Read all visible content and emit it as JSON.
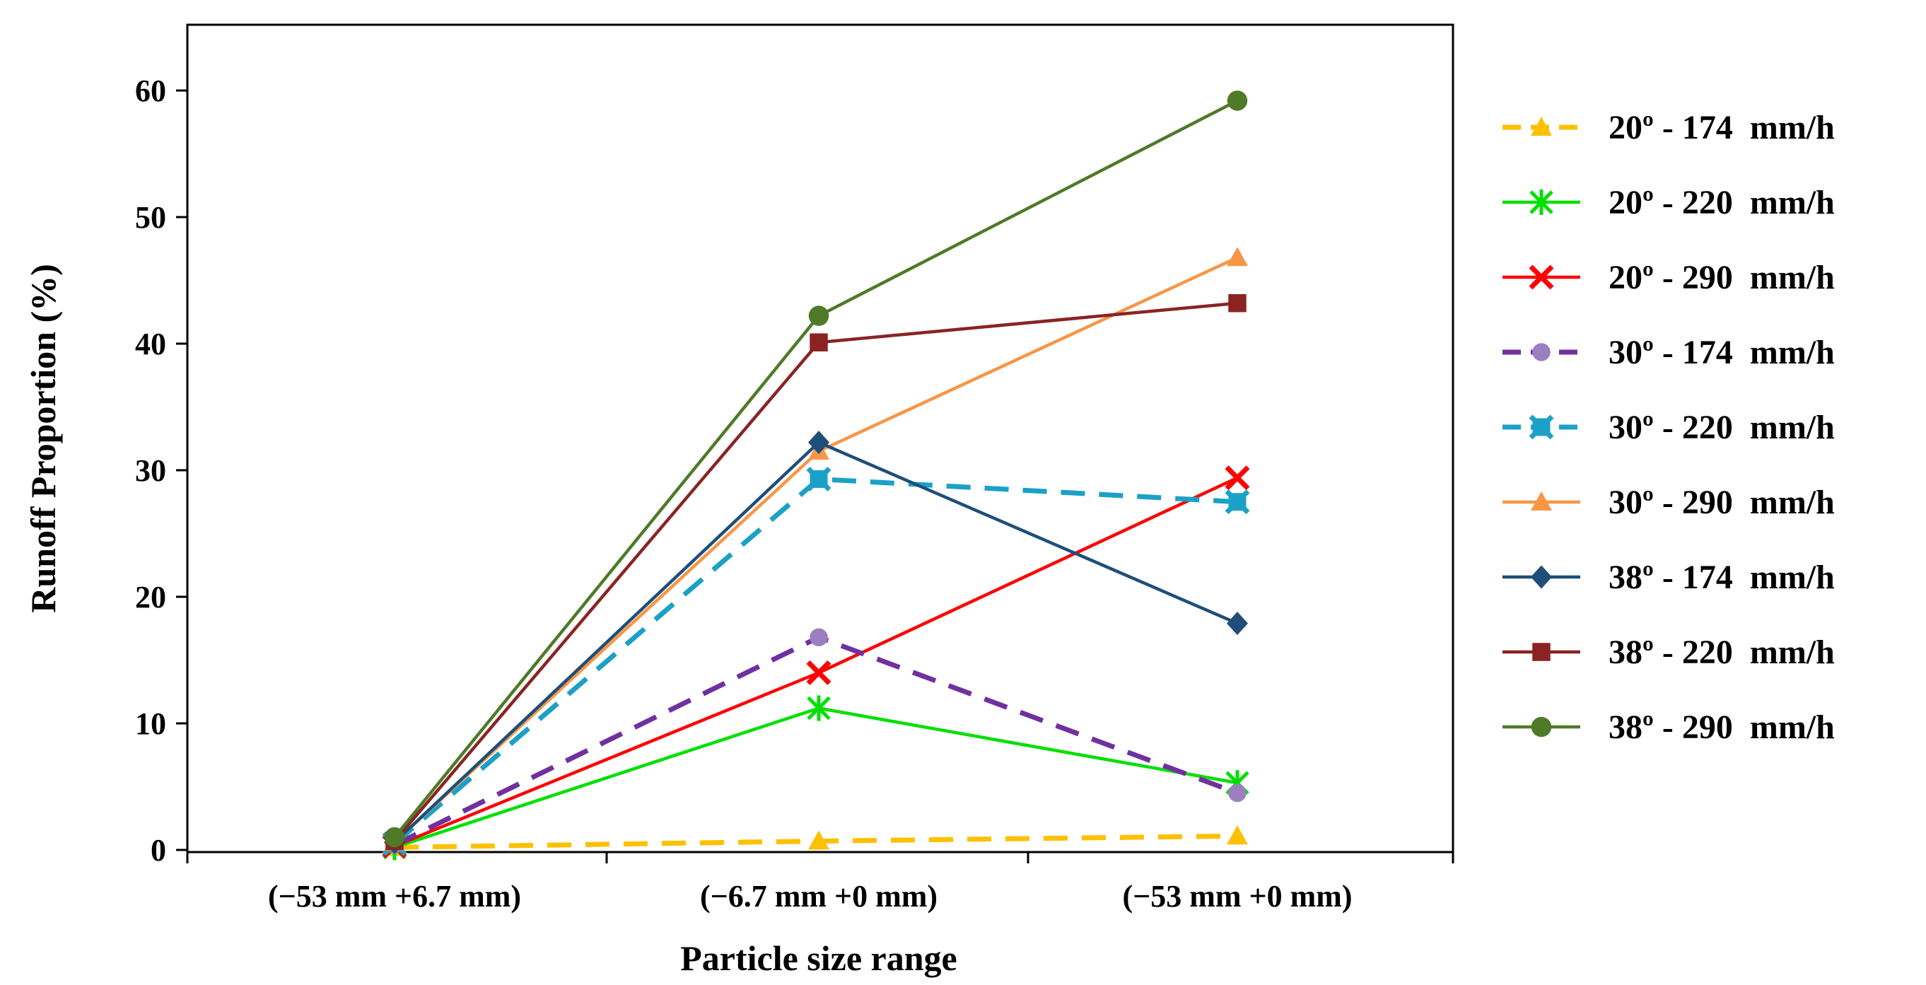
{
  "chart_data": {
    "type": "line",
    "title": "",
    "xlabel": "Particle size range",
    "ylabel": "Runoff Proportion (%)",
    "categories": [
      "(−53 mm +6.7 mm)",
      "(−6.7 mm +0 mm)",
      "(−53 mm +0 mm)"
    ],
    "ylim": [
      0,
      65
    ],
    "yticks": [
      0,
      10,
      20,
      30,
      40,
      50,
      60
    ],
    "grid": false,
    "legend_position": "right",
    "series": [
      {
        "name": "20º - 174  mm/h",
        "color": "#FFC000",
        "dash": true,
        "marker": "triangle",
        "values": [
          0.2,
          0.7,
          1.1
        ]
      },
      {
        "name": "20º - 220  mm/h",
        "color": "#00E000",
        "dash": false,
        "marker": "asterisk",
        "values": [
          0.2,
          11.2,
          5.3
        ]
      },
      {
        "name": "20º - 290  mm/h",
        "color": "#FF0000",
        "dash": false,
        "marker": "x",
        "values": [
          0.3,
          14.0,
          29.4
        ]
      },
      {
        "name": "30º - 174  mm/h",
        "color": "#7030A0",
        "dash": true,
        "marker": "circle-light",
        "values": [
          0.4,
          16.8,
          4.5
        ]
      },
      {
        "name": "30º - 220  mm/h",
        "color": "#1BA1C7",
        "dash": true,
        "marker": "cross-square",
        "values": [
          0.5,
          29.3,
          27.5
        ]
      },
      {
        "name": "30º - 290  mm/h",
        "color": "#F79646",
        "dash": false,
        "marker": "triangle",
        "values": [
          0.6,
          31.5,
          46.8
        ]
      },
      {
        "name": "38º - 174  mm/h",
        "color": "#1F4E79",
        "dash": false,
        "marker": "diamond",
        "values": [
          0.6,
          32.2,
          17.9
        ]
      },
      {
        "name": "38º - 220  mm/h",
        "color": "#8B2323",
        "dash": false,
        "marker": "square",
        "values": [
          0.7,
          40.1,
          43.2
        ]
      },
      {
        "name": "38º - 290  mm/h",
        "color": "#4F7A28",
        "dash": false,
        "marker": "circle",
        "values": [
          1.0,
          42.2,
          59.2
        ]
      }
    ]
  }
}
